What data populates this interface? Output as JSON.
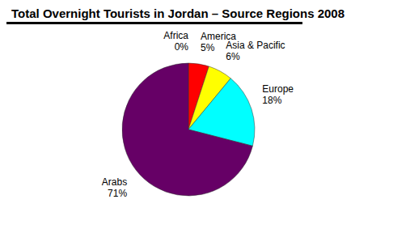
{
  "chart_data": {
    "type": "pie",
    "title": "Total Overnight Tourists in Jordan – Source Regions 2008",
    "categories": [
      "Africa",
      "America",
      "Asia & Pacific",
      "Europe",
      "Arabs"
    ],
    "values": [
      0,
      5,
      6,
      18,
      71
    ],
    "value_labels": [
      "0%",
      "5%",
      "6%",
      "18%",
      "71%"
    ],
    "colors": [
      "#000066",
      "#ff0000",
      "#ffff00",
      "#00ffff",
      "#660066"
    ],
    "data_labels": true
  }
}
